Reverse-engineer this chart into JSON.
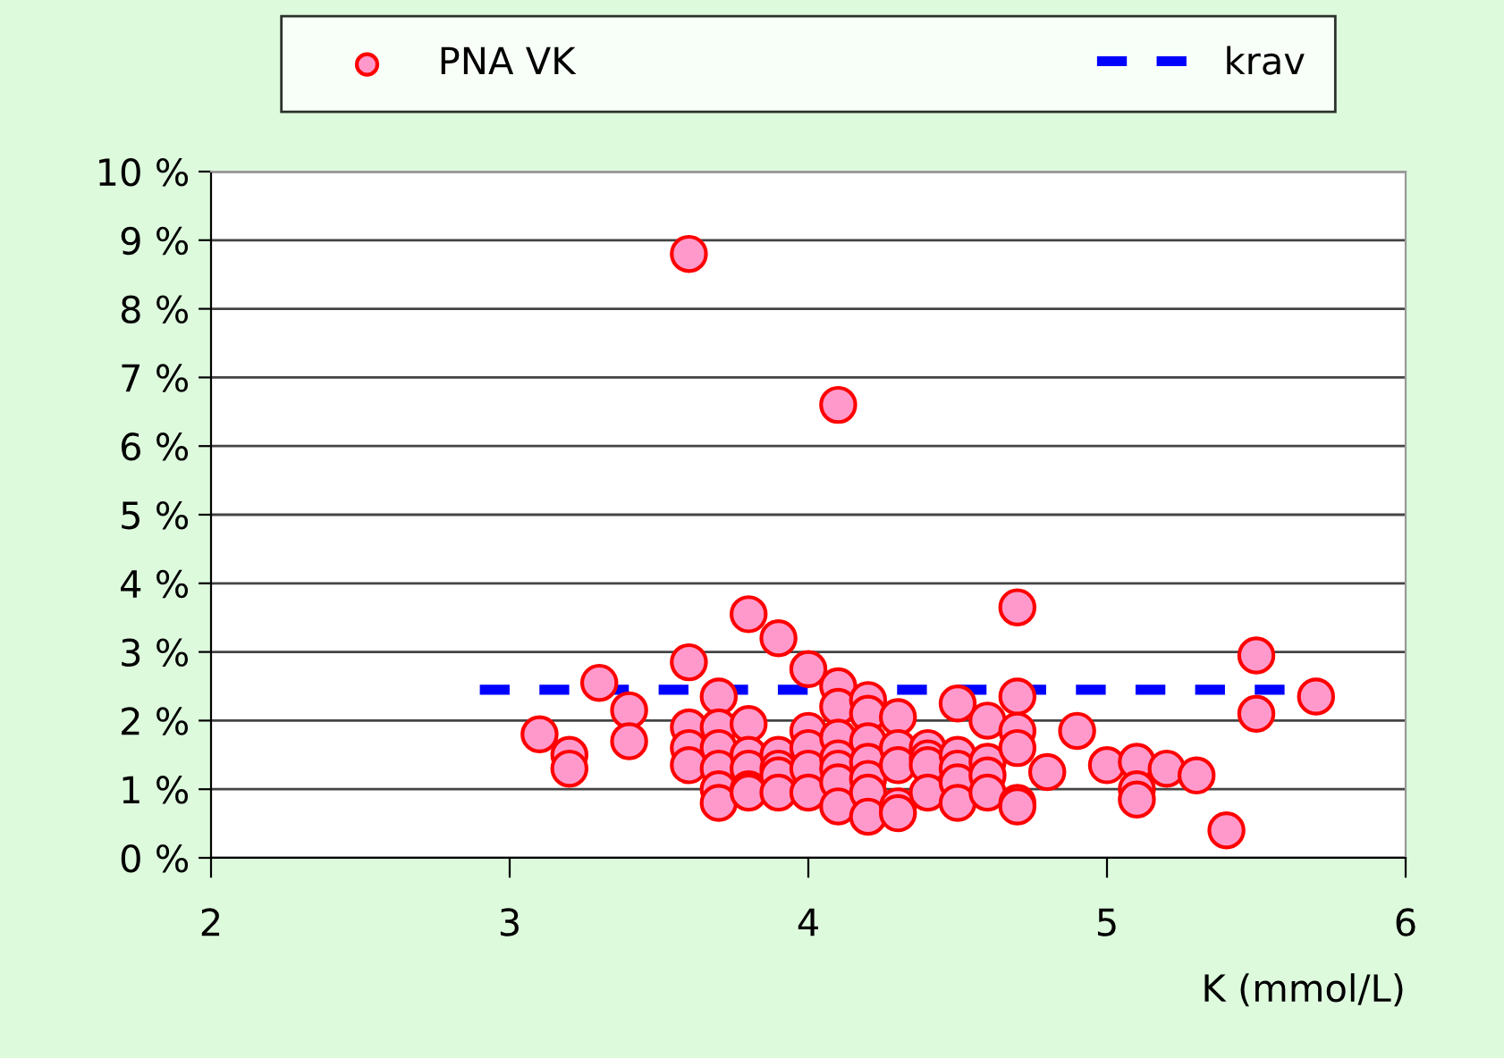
{
  "chart_data": {
    "type": "scatter",
    "xlabel": "K (mmol/L)",
    "xlim": [
      2,
      6
    ],
    "xticks": [
      2,
      3,
      4,
      5,
      6
    ],
    "ylim": [
      0,
      10
    ],
    "yticks": [
      {
        "value": 0,
        "label": "0 %"
      },
      {
        "value": 1,
        "label": "1 %"
      },
      {
        "value": 2,
        "label": "2 %"
      },
      {
        "value": 3,
        "label": "3 %"
      },
      {
        "value": 4,
        "label": "4 %"
      },
      {
        "value": 5,
        "label": "5 %"
      },
      {
        "value": 6,
        "label": "6 %"
      },
      {
        "value": 7,
        "label": "7 %"
      },
      {
        "value": 8,
        "label": "8 %"
      },
      {
        "value": 9,
        "label": "9 %"
      },
      {
        "value": 10,
        "label": "10 %"
      }
    ],
    "grid": "y",
    "legend": "top",
    "series": [
      {
        "name": "PNA VK",
        "color": "#ff99cc",
        "marker": "circle",
        "x": [
          3.1,
          3.2,
          3.2,
          3.3,
          3.4,
          3.4,
          3.6,
          3.6,
          3.6,
          3.6,
          3.6,
          3.7,
          3.7,
          3.7,
          3.7,
          3.7,
          3.7,
          3.8,
          3.8,
          3.8,
          3.8,
          3.8,
          3.8,
          3.9,
          3.9,
          3.9,
          3.9,
          3.9,
          4.0,
          4.0,
          4.0,
          4.0,
          4.0,
          4.1,
          4.1,
          4.1,
          4.1,
          4.1,
          4.1,
          4.1,
          4.1,
          4.2,
          4.2,
          4.2,
          4.2,
          4.2,
          4.2,
          4.2,
          4.3,
          4.3,
          4.3,
          4.3,
          4.3,
          4.4,
          4.4,
          4.4,
          4.4,
          4.5,
          4.5,
          4.5,
          4.5,
          4.5,
          4.6,
          4.6,
          4.6,
          4.6,
          4.7,
          4.7,
          4.7,
          4.7,
          4.7,
          4.7,
          4.8,
          4.9,
          5.0,
          5.1,
          5.1,
          5.1,
          5.2,
          5.3,
          5.4,
          5.5,
          5.5,
          5.7
        ],
        "values": [
          1.8,
          1.5,
          1.3,
          2.55,
          2.15,
          1.7,
          8.8,
          2.85,
          1.9,
          1.6,
          1.35,
          2.35,
          1.9,
          1.6,
          1.3,
          1.0,
          0.8,
          3.55,
          1.95,
          1.5,
          1.3,
          1.0,
          0.95,
          3.2,
          1.5,
          1.3,
          1.2,
          0.95,
          2.75,
          1.85,
          1.6,
          1.3,
          0.95,
          6.6,
          2.5,
          2.2,
          1.75,
          1.45,
          1.3,
          1.1,
          0.75,
          2.3,
          2.1,
          1.7,
          1.4,
          1.15,
          0.95,
          0.6,
          2.05,
          1.6,
          1.35,
          0.75,
          0.65,
          1.6,
          1.45,
          1.35,
          0.95,
          2.25,
          1.5,
          1.3,
          1.1,
          0.8,
          2.0,
          1.4,
          1.2,
          0.95,
          3.65,
          2.35,
          1.85,
          1.6,
          0.8,
          0.75,
          1.25,
          1.85,
          1.35,
          1.4,
          1.0,
          0.85,
          1.3,
          1.2,
          0.4,
          2.95,
          2.1,
          2.35
        ]
      },
      {
        "name": "krav",
        "type": "line",
        "color": "#0000ff",
        "line_style": "dashed",
        "x": [
          2.9,
          5.6
        ],
        "values": [
          2.45,
          2.45
        ]
      }
    ]
  }
}
